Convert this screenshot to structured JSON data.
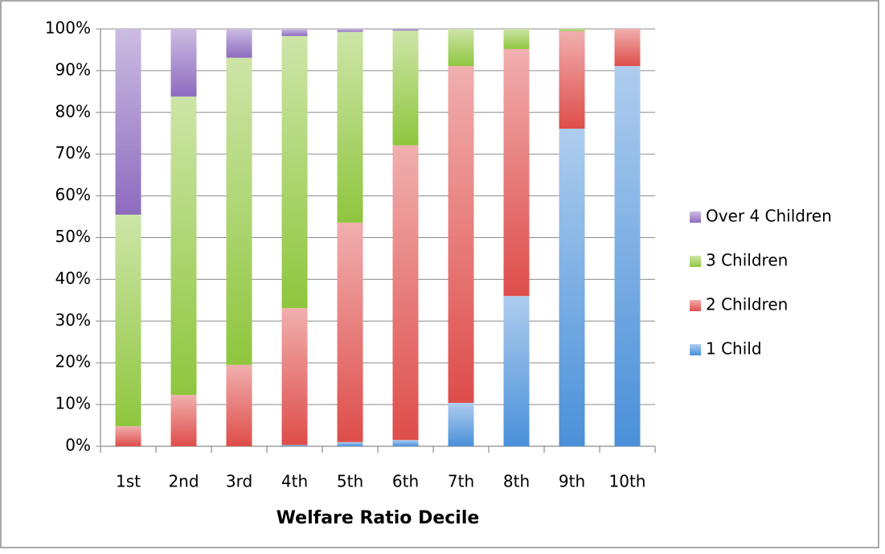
{
  "chart_data": {
    "type": "bar",
    "stacked": true,
    "x_label": "Welfare Ratio Decile",
    "categories": [
      "1st",
      "2nd",
      "3rd",
      "4th",
      "5th",
      "6th",
      "7th",
      "8th",
      "9th",
      "10th"
    ],
    "series": [
      {
        "name": "1 Child",
        "color": "#4a90d9",
        "values": [
          0,
          0,
          0,
          0.3,
          1,
          1.5,
          10.4,
          36,
          76.1,
          91.1
        ]
      },
      {
        "name": "2 Children",
        "color": "#de4d4a",
        "values": [
          4.8,
          12.3,
          19.5,
          32.8,
          52.6,
          70.6,
          80.7,
          59.2,
          23.4,
          8.9
        ]
      },
      {
        "name": "3 Children",
        "color": "#8fc63e",
        "values": [
          50.7,
          71.5,
          73.6,
          65.2,
          45.7,
          27.5,
          8.9,
          4.8,
          0.5,
          0
        ]
      },
      {
        "name": "Over 4 Children",
        "color": "#8d6bbf",
        "values": [
          44.5,
          16.2,
          6.9,
          1.7,
          0.7,
          0.4,
          0,
          0,
          0,
          0
        ]
      }
    ],
    "ylim": [
      0,
      100
    ],
    "yticks": [
      {
        "value": 0,
        "label": "0%"
      },
      {
        "value": 10,
        "label": "10%"
      },
      {
        "value": 20,
        "label": "20%"
      },
      {
        "value": 30,
        "label": "30%"
      },
      {
        "value": 40,
        "label": "40%"
      },
      {
        "value": 50,
        "label": "50%"
      },
      {
        "value": 60,
        "label": "60%"
      },
      {
        "value": 70,
        "label": "70%"
      },
      {
        "value": 80,
        "label": "80%"
      },
      {
        "value": 90,
        "label": "90%"
      },
      {
        "value": 100,
        "label": "100%"
      }
    ],
    "grid": true,
    "legend": "right"
  }
}
